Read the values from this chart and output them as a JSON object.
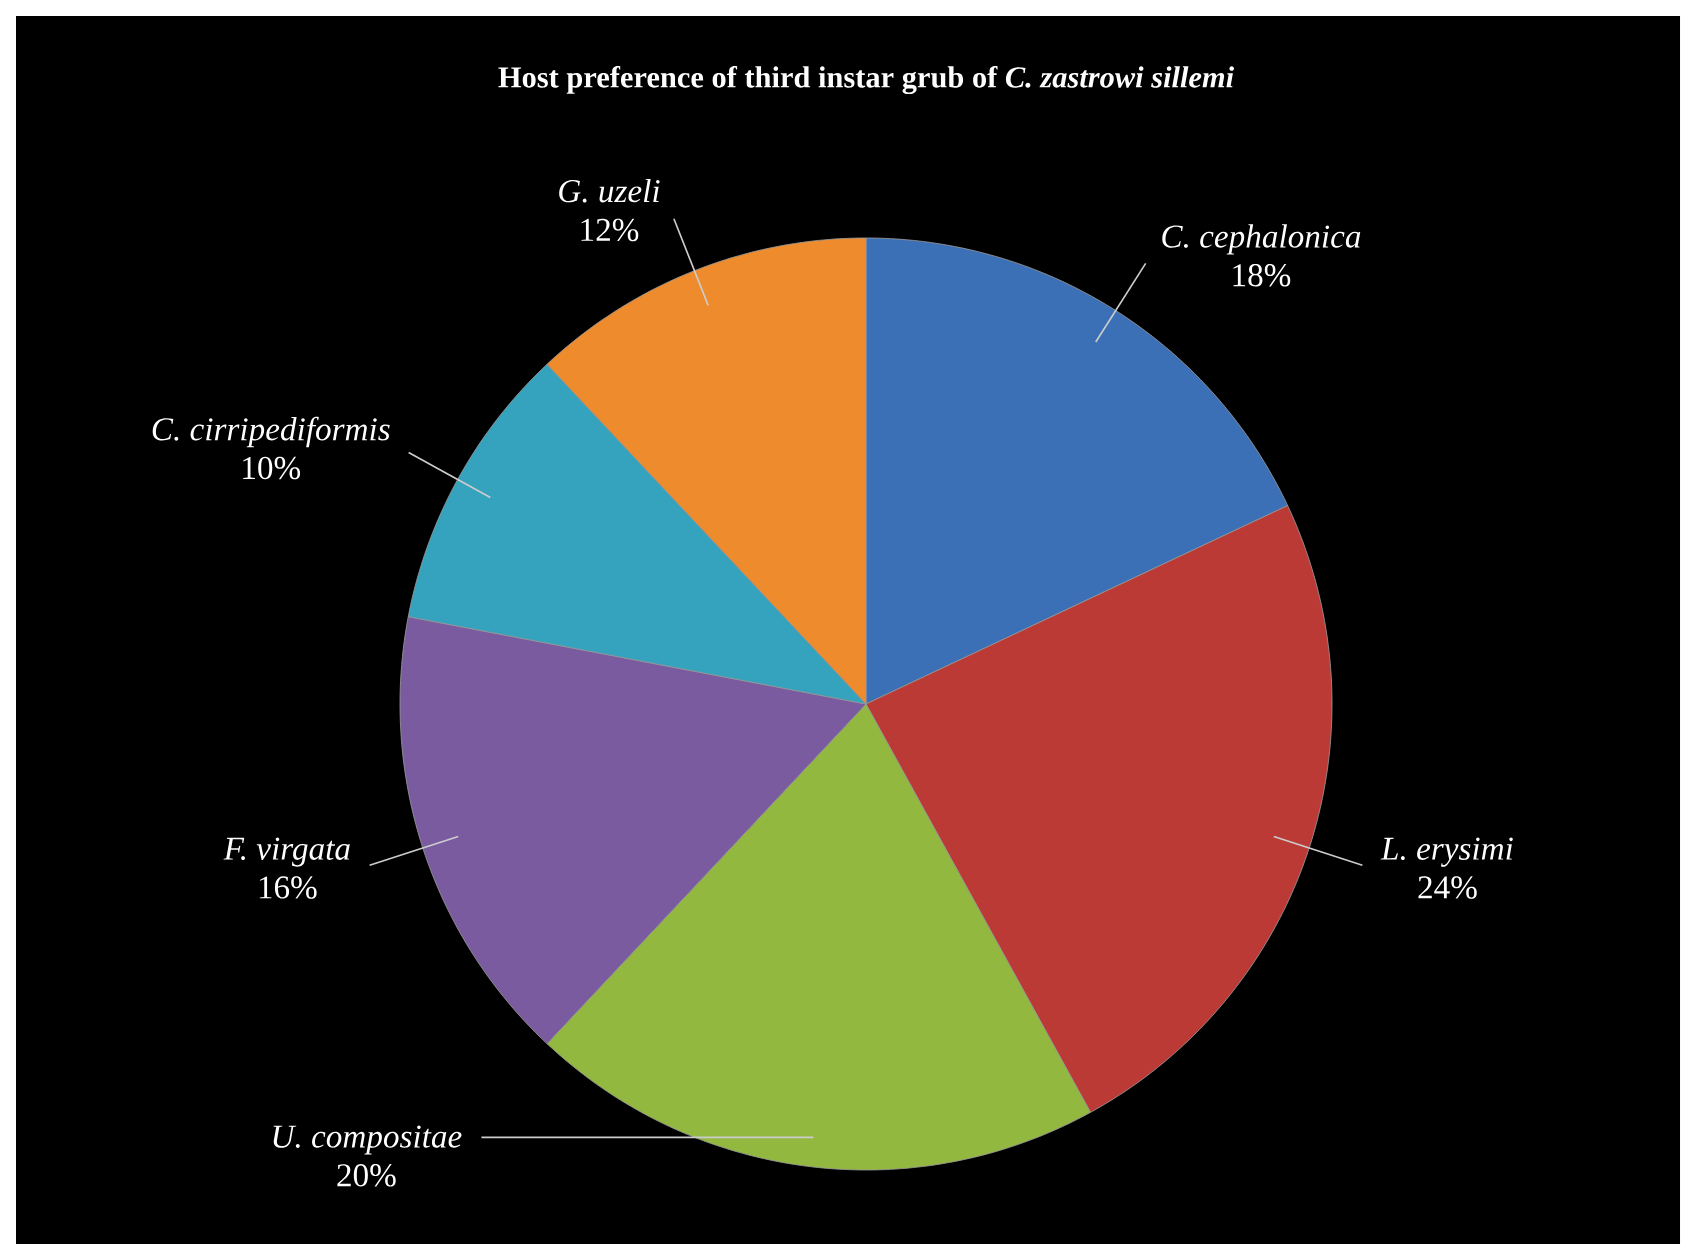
{
  "chart_data": {
    "type": "pie",
    "title": "Host preference of third instar grub of *C. zastrowi sillemi*",
    "categories": [
      "C. cephalonica",
      "L. erysimi",
      "U. compositae",
      "F. virgata",
      "C. cirripediformis",
      "G. uzeli"
    ],
    "values": [
      18,
      24,
      20,
      16,
      10,
      12
    ],
    "value_labels": [
      "18%",
      "24%",
      "20%",
      "16%",
      "10%",
      "12%"
    ],
    "colors": [
      "#3b6fb6",
      "#bb3a36",
      "#93b83f",
      "#7a5ba0",
      "#35a2be",
      "#ee8b2c"
    ]
  }
}
